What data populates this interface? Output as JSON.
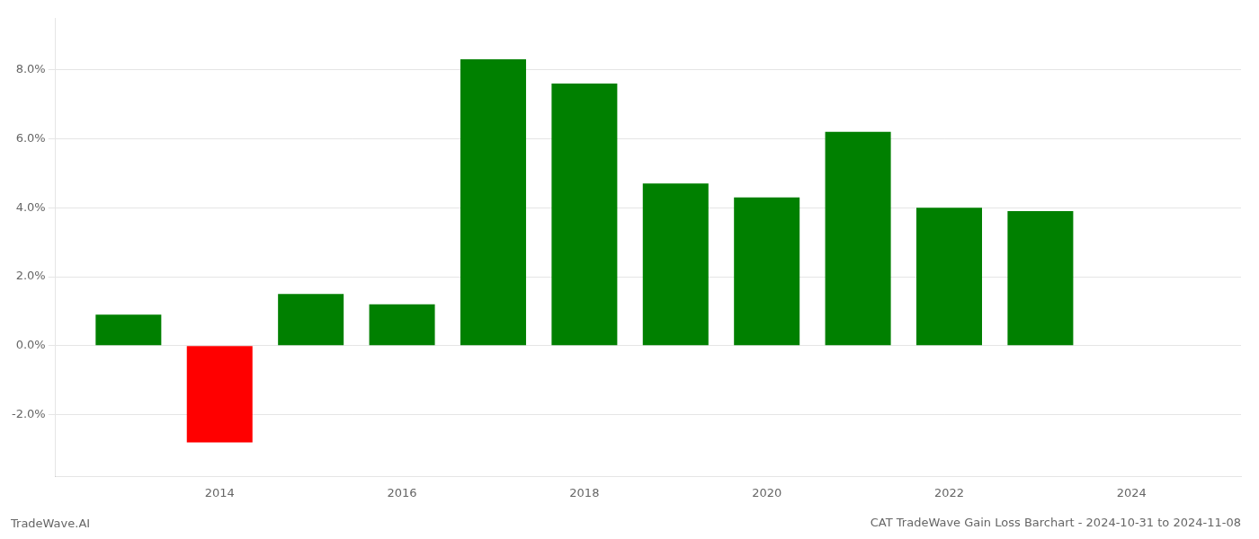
{
  "chart_data": {
    "type": "bar",
    "title": "CAT TradeWave Gain Loss Barchart - 2024-10-31 to 2024-11-08",
    "annotations": [
      "TradeWave.AI"
    ],
    "x": [
      2013,
      2014,
      2015,
      2016,
      2017,
      2018,
      2019,
      2020,
      2021,
      2022,
      2023
    ],
    "values": [
      0.009,
      -0.028,
      0.015,
      0.012,
      0.083,
      0.076,
      0.047,
      0.043,
      0.062,
      0.04,
      0.039
    ],
    "colors": [
      "#008000",
      "#ff0000",
      "#008000",
      "#008000",
      "#008000",
      "#008000",
      "#008000",
      "#008000",
      "#008000",
      "#008000",
      "#008000"
    ],
    "xlim": [
      2012.2,
      2025.2
    ],
    "xticks": [
      2014,
      2016,
      2018,
      2020,
      2022,
      2024
    ],
    "ylim": [
      -0.038,
      0.095
    ],
    "yticks": [
      {
        "value": -0.02,
        "label": "-2.0%"
      },
      {
        "value": 0.0,
        "label": "0.0%"
      },
      {
        "value": 0.02,
        "label": "2.0%"
      },
      {
        "value": 0.04,
        "label": "4.0%"
      },
      {
        "value": 0.06,
        "label": "6.0%"
      },
      {
        "value": 0.08,
        "label": "8.0%"
      }
    ],
    "grid": true
  }
}
